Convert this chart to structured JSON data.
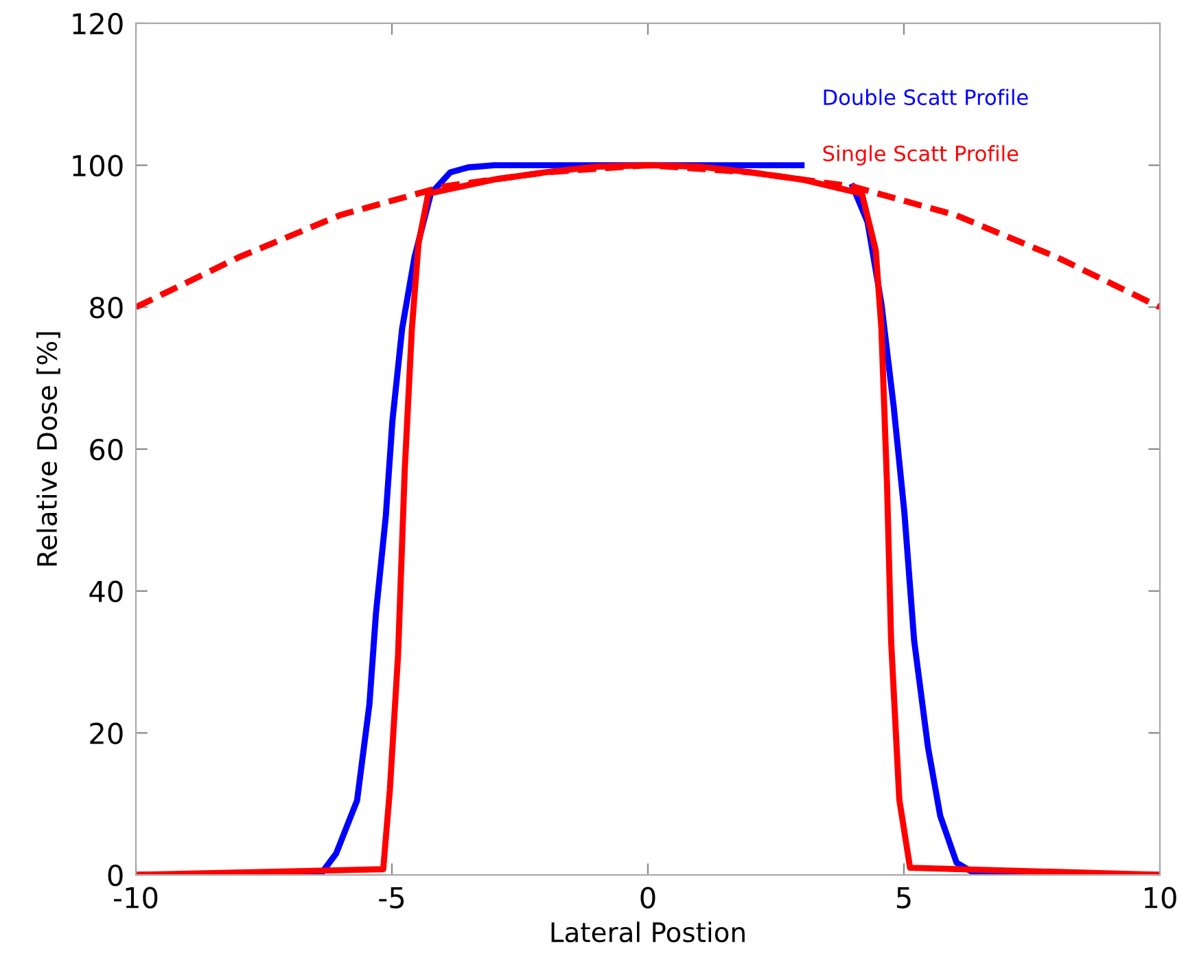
{
  "chart_data": {
    "type": "line",
    "xlabel": "Lateral Postion",
    "ylabel": "Relative Dose [%]",
    "xlim": [
      -10,
      10
    ],
    "ylim": [
      0,
      120
    ],
    "xticks": [
      -10,
      -5,
      0,
      5,
      10
    ],
    "yticks": [
      0,
      20,
      40,
      60,
      80,
      100,
      120
    ],
    "grid": false,
    "legend": false,
    "marker": "none",
    "series": [
      {
        "name": "Double Scatt Profile",
        "color": "#0000ff",
        "line_style": "solid",
        "x": [
          -10,
          -6.4,
          -6.09,
          -5.68,
          -5.44,
          -5.31,
          -5.12,
          -4.99,
          -4.8,
          -4.56,
          -4.24,
          -3.86,
          -3.51,
          -3,
          3.0,
          3.5,
          4.0,
          4.29,
          4.56,
          4.8,
          5.01,
          5.2,
          5.47,
          5.71,
          6.03,
          6.43,
          10
        ],
        "values": [
          0,
          0,
          3,
          10.5,
          24,
          37,
          50.5,
          64,
          77,
          87,
          96,
          99,
          99.7,
          100,
          100,
          null,
          97,
          92,
          80.5,
          66,
          51,
          33,
          18,
          8.3,
          1.7,
          0,
          0
        ]
      },
      {
        "name": "Single Scatt Profile",
        "color": "#ff0000",
        "line_style": "solid",
        "x": [
          -10,
          -5.17,
          -5.04,
          -4.88,
          -4.75,
          -4.61,
          -4.48,
          -4.29,
          -3,
          -2,
          -1,
          0,
          1,
          2,
          3,
          4.18,
          4.45,
          4.56,
          4.67,
          4.75,
          4.91,
          5.12,
          10
        ],
        "values": [
          0,
          0.8,
          12,
          31,
          57,
          77,
          89,
          96,
          98,
          99,
          99.8,
          100,
          99.8,
          99,
          98,
          96,
          88,
          77,
          55,
          33,
          10.6,
          1,
          0
        ]
      },
      {
        "color": "#ff0000",
        "line_style": "dashed",
        "x": [
          -10,
          -8,
          -6,
          -4,
          -2,
          0,
          2,
          4,
          6,
          8,
          10
        ],
        "values": [
          80,
          87,
          93,
          97,
          99,
          100,
          99,
          97,
          93,
          87,
          80
        ]
      }
    ]
  }
}
